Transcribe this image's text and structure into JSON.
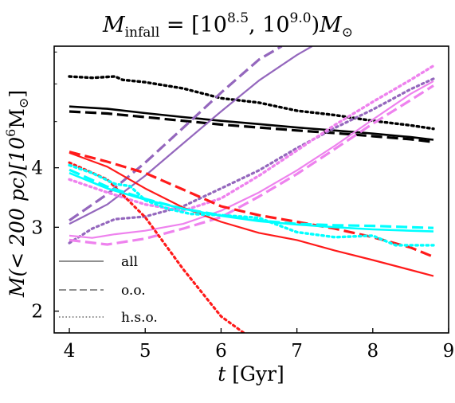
{
  "chart_data": {
    "type": "line",
    "title": "M_infall = [10^8.5, 10^9.0) M_⊙",
    "title_parts": {
      "symbol": "M",
      "subscript": "infall",
      "equals": " = [10",
      "exp1": "8.5",
      "sep": ", 10",
      "exp2": "9.0",
      "close": ")",
      "unit": "M",
      "unit_sub": "⊙"
    },
    "xlabel": "t [Gyr]",
    "xlabel_parts": {
      "var": "t",
      "unit": " [Gyr]"
    },
    "ylabel": "M(< 200 pc) [10^6 M_⊙]",
    "ylabel_parts": {
      "main": "M(< 200 pc)[10",
      "exp": "6",
      "unit": "M",
      "unit_sub": "⊙",
      "close": "]"
    },
    "xlim": [
      3.8,
      9.0
    ],
    "ylim": [
      1.8,
      7.2
    ],
    "yscale": "log",
    "xticks": [
      4,
      5,
      6,
      7,
      8,
      9
    ],
    "yticks": [
      2,
      3,
      4
    ],
    "grid": false,
    "legend_placement": "bottom-left",
    "legend": [
      {
        "label": "all",
        "linestyle": "solid"
      },
      {
        "label": "o.o.",
        "linestyle": "dashed"
      },
      {
        "label": "h.s.o.",
        "linestyle": "dotted"
      }
    ],
    "colors": {
      "black": "#000000",
      "purple": "#9467bd",
      "violet": "#ee82ee",
      "red": "#ff1a1a",
      "cyan": "#00ffff",
      "legend_gray": "#808080"
    },
    "series": [
      {
        "color": "black",
        "style": "solid",
        "lw": 2.6,
        "x": [
          4.0,
          4.5,
          5.0,
          5.5,
          6.0,
          6.5,
          7.0,
          7.5,
          8.0,
          8.5,
          8.8
        ],
        "y": [
          5.38,
          5.32,
          5.21,
          5.11,
          5.02,
          4.94,
          4.86,
          4.79,
          4.72,
          4.64,
          4.58
        ]
      },
      {
        "color": "black",
        "style": "dashed",
        "lw": 3.2,
        "x": [
          4.0,
          4.5,
          5.0,
          5.5,
          6.0,
          6.5,
          7.0,
          7.5,
          8.0,
          8.5,
          8.8
        ],
        "y": [
          5.25,
          5.2,
          5.11,
          5.02,
          4.93,
          4.86,
          4.79,
          4.73,
          4.66,
          4.59,
          4.53
        ]
      },
      {
        "color": "black",
        "style": "dotted",
        "lw": 3.4,
        "x": [
          4.0,
          4.3,
          4.6,
          4.7,
          5.0,
          5.5,
          6.0,
          6.5,
          7.0,
          7.5,
          8.0,
          8.5,
          8.8
        ],
        "y": [
          6.22,
          6.18,
          6.22,
          6.12,
          6.05,
          5.87,
          5.6,
          5.48,
          5.27,
          5.16,
          5.02,
          4.91,
          4.83
        ]
      },
      {
        "color": "purple",
        "style": "solid",
        "lw": 2.2,
        "x": [
          4.0,
          4.5,
          5.0,
          5.5,
          6.0,
          6.5,
          7.0,
          7.2
        ],
        "y": [
          3.05,
          3.35,
          3.85,
          4.5,
          5.25,
          6.1,
          6.9,
          7.2
        ]
      },
      {
        "color": "purple",
        "style": "dashed",
        "lw": 3.2,
        "x": [
          4.0,
          4.5,
          5.0,
          5.5,
          6.0,
          6.5,
          6.8
        ],
        "y": [
          3.1,
          3.52,
          4.1,
          4.85,
          5.75,
          6.75,
          7.2
        ]
      },
      {
        "color": "purple",
        "style": "dotted",
        "lw": 3.2,
        "x": [
          4.0,
          4.3,
          4.6,
          5.0,
          5.5,
          6.0,
          6.5,
          7.0,
          7.5,
          8.0,
          8.5,
          8.8
        ],
        "y": [
          2.78,
          2.98,
          3.12,
          3.16,
          3.32,
          3.62,
          3.95,
          4.4,
          4.85,
          5.3,
          5.85,
          6.15
        ]
      },
      {
        "color": "violet",
        "style": "solid",
        "lw": 2.2,
        "x": [
          4.0,
          4.3,
          4.6,
          5.0,
          5.5,
          6.0,
          6.5,
          7.0,
          7.5,
          8.0,
          8.5,
          8.8
        ],
        "y": [
          2.88,
          2.85,
          2.9,
          2.95,
          3.05,
          3.25,
          3.55,
          3.95,
          4.45,
          5.05,
          5.72,
          6.08
        ]
      },
      {
        "color": "violet",
        "style": "dashed",
        "lw": 3.2,
        "x": [
          4.0,
          4.5,
          5.0,
          5.5,
          6.0,
          6.5,
          7.0,
          7.5,
          8.0,
          8.5,
          8.8
        ],
        "y": [
          2.82,
          2.76,
          2.84,
          2.98,
          3.15,
          3.48,
          3.88,
          4.38,
          4.95,
          5.55,
          5.95
        ]
      },
      {
        "color": "violet",
        "style": "dotted",
        "lw": 3.4,
        "x": [
          4.0,
          4.5,
          5.0,
          5.5,
          6.0,
          6.5,
          7.0,
          7.5,
          8.0,
          8.5,
          8.8
        ],
        "y": [
          3.78,
          3.55,
          3.35,
          3.25,
          3.45,
          3.85,
          4.35,
          4.92,
          5.5,
          6.12,
          6.55
        ]
      },
      {
        "color": "red",
        "style": "solid",
        "lw": 2.2,
        "x": [
          4.0,
          4.5,
          5.0,
          5.5,
          6.0,
          6.5,
          7.0,
          7.5,
          8.0,
          8.5,
          8.8
        ],
        "y": [
          4.3,
          4.02,
          3.62,
          3.3,
          3.08,
          2.92,
          2.82,
          2.68,
          2.56,
          2.44,
          2.37
        ]
      },
      {
        "color": "red",
        "style": "dashed",
        "lw": 3.2,
        "x": [
          4.0,
          4.5,
          5.0,
          5.5,
          6.0,
          6.5,
          7.0,
          7.5,
          8.0,
          8.5,
          8.8
        ],
        "y": [
          4.32,
          4.12,
          3.9,
          3.6,
          3.32,
          3.18,
          3.08,
          2.98,
          2.86,
          2.72,
          2.6
        ]
      },
      {
        "color": "red",
        "style": "dotted",
        "lw": 3.2,
        "x": [
          4.0,
          4.5,
          5.0,
          5.5,
          6.0,
          6.3
        ],
        "y": [
          4.1,
          3.78,
          3.15,
          2.45,
          1.95,
          1.8
        ]
      },
      {
        "color": "cyan",
        "style": "solid",
        "lw": 2.6,
        "x": [
          4.0,
          4.5,
          5.0,
          5.5,
          6.0,
          6.5,
          7.0,
          7.5,
          8.0,
          8.5,
          8.8
        ],
        "y": [
          3.9,
          3.62,
          3.43,
          3.28,
          3.17,
          3.09,
          3.04,
          3.0,
          2.97,
          2.95,
          2.94
        ]
      },
      {
        "color": "cyan",
        "style": "dashed",
        "lw": 3.2,
        "x": [
          4.0,
          4.5,
          5.0,
          5.5,
          6.0,
          6.5,
          7.0,
          7.5,
          8.0,
          8.5,
          8.8
        ],
        "y": [
          3.96,
          3.65,
          3.44,
          3.28,
          3.18,
          3.1,
          3.05,
          3.03,
          3.02,
          3.0,
          2.99
        ]
      },
      {
        "color": "cyan",
        "style": "dotted",
        "lw": 3.4,
        "x": [
          4.0,
          4.3,
          4.6,
          4.8,
          5.0,
          5.3,
          5.6,
          6.0,
          6.5,
          7.0,
          7.5,
          8.0,
          8.3,
          8.5,
          8.8
        ],
        "y": [
          4.05,
          3.9,
          3.7,
          3.66,
          3.42,
          3.28,
          3.2,
          3.18,
          3.14,
          2.93,
          2.86,
          2.88,
          2.75,
          2.75,
          2.75
        ]
      }
    ]
  }
}
